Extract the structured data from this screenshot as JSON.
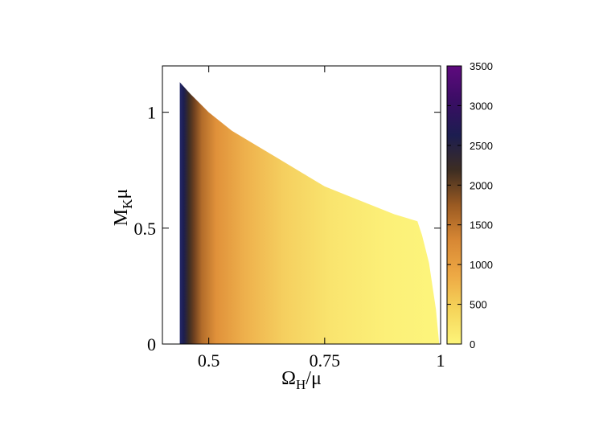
{
  "chart_data": {
    "type": "heatmap",
    "xlabel": {
      "main": "Ω",
      "sub": "H",
      "tail": "/μ"
    },
    "ylabel": {
      "main": "M",
      "sub": "K",
      "tail": "μ"
    },
    "xlim": [
      0.4,
      1.0
    ],
    "ylim": [
      0,
      1.2
    ],
    "x_ticks": [
      {
        "value": 0.5,
        "label": "0.5"
      },
      {
        "value": 0.75,
        "label": "0.75"
      },
      {
        "value": 1.0,
        "label": "1"
      }
    ],
    "y_ticks": [
      {
        "value": 0,
        "label": "0"
      },
      {
        "value": 0.5,
        "label": "0.5"
      },
      {
        "value": 1.0,
        "label": "1"
      }
    ],
    "colorbar": {
      "range": [
        0,
        3500
      ],
      "ticks": [
        {
          "value": 0,
          "label": "0"
        },
        {
          "value": 500,
          "label": "500"
        },
        {
          "value": 1000,
          "label": "1000"
        },
        {
          "value": 1500,
          "label": "1500"
        },
        {
          "value": 2000,
          "label": "2000"
        },
        {
          "value": 2500,
          "label": "2500"
        },
        {
          "value": 3000,
          "label": "3000"
        },
        {
          "value": 3500,
          "label": "3500"
        }
      ],
      "colors": [
        "#fdf57a",
        "#f5d45a",
        "#eda844",
        "#d78734",
        "#9a5a22",
        "#3d2d22",
        "#1c1d50",
        "#3a0d64",
        "#5e0a7e"
      ]
    },
    "region_boundary": [
      [
        0.4375,
        0
      ],
      [
        0.4375,
        1.13
      ],
      [
        0.46,
        1.08
      ],
      [
        0.5,
        1.0
      ],
      [
        0.55,
        0.92
      ],
      [
        0.6,
        0.86
      ],
      [
        0.65,
        0.8
      ],
      [
        0.7,
        0.74
      ],
      [
        0.75,
        0.68
      ],
      [
        0.8,
        0.64
      ],
      [
        0.85,
        0.6
      ],
      [
        0.9,
        0.56
      ],
      [
        0.95,
        0.53
      ],
      [
        0.96,
        0.47
      ],
      [
        0.975,
        0.35
      ],
      [
        0.99,
        0.15
      ],
      [
        0.997,
        0
      ]
    ]
  }
}
